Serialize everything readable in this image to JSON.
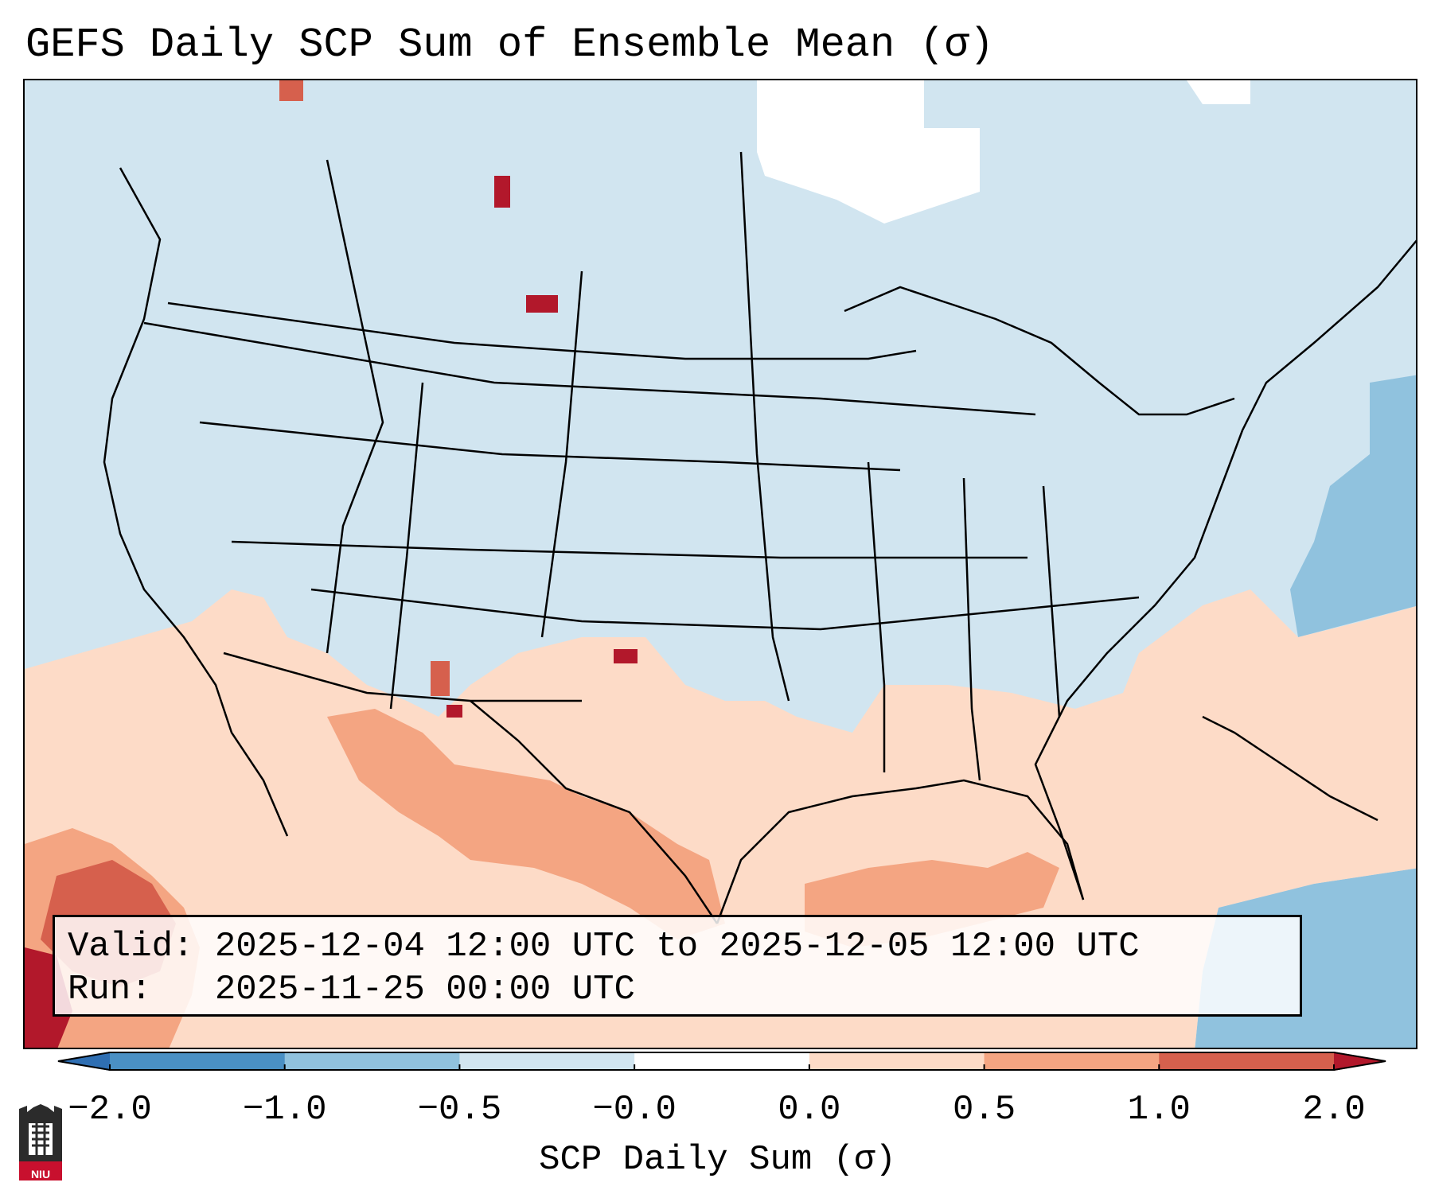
{
  "title": "GEFS Daily SCP Sum of Ensemble Mean (σ)",
  "info": {
    "valid_label": "Valid:",
    "valid_value": "2025-12-04 12:00 UTC to 2025-12-05 12:00 UTC",
    "run_label": "Run:",
    "run_value": "2025-11-25 00:00 UTC"
  },
  "colorbar": {
    "label": "SCP Daily Sum (σ)",
    "ticks": [
      "−2.0",
      "−1.0",
      "−0.5",
      "−0.0",
      "0.0",
      "0.5",
      "1.0",
      "2.0"
    ],
    "bins": [
      {
        "range": "below -2.0",
        "color": "#2f6fb3"
      },
      {
        "range": "-2.0 to -1.0",
        "color": "#4a90c4"
      },
      {
        "range": "-1.0 to -0.5",
        "color": "#90c2de"
      },
      {
        "range": "-0.5 to -0.0",
        "color": "#d1e5f0"
      },
      {
        "range": "-0.0 to 0.0",
        "color": "#ffffff"
      },
      {
        "range": "0.0 to 0.5",
        "color": "#fddbc7"
      },
      {
        "range": "0.5 to 1.0",
        "color": "#f4a582"
      },
      {
        "range": "1.0 to 2.0",
        "color": "#d6604d"
      },
      {
        "range": "above 2.0",
        "color": "#b2182b"
      }
    ]
  },
  "logo": {
    "text": "NIU"
  },
  "map_fields": {
    "domain": "Contiguous United States with southern Canada, northern Mexico, Gulf of Mexico and western Atlantic",
    "regions": [
      {
        "name": "Northern & central US, Canada",
        "value_bin": "-0.5 to -0.0"
      },
      {
        "name": "Central Canada (Manitoba/Ontario)",
        "value_bin": "-0.0 to 0.0"
      },
      {
        "name": "Southwest US / northern Mexico",
        "value_bin": "0.0 to 0.5"
      },
      {
        "name": "Southern New Mexico / west Texas",
        "value_bin": "0.5 to 1.0"
      },
      {
        "name": "Gulf of Mexico",
        "value_bin": "0.5 to 1.0"
      },
      {
        "name": "Eastern Pacific off Baja",
        "value_bin": "1.0 to 2.0"
      },
      {
        "name": "Western Atlantic",
        "value_bin": "-1.0 to -0.5"
      },
      {
        "name": "Subtropical Atlantic",
        "value_bin": "0.0 to 0.5"
      }
    ]
  }
}
